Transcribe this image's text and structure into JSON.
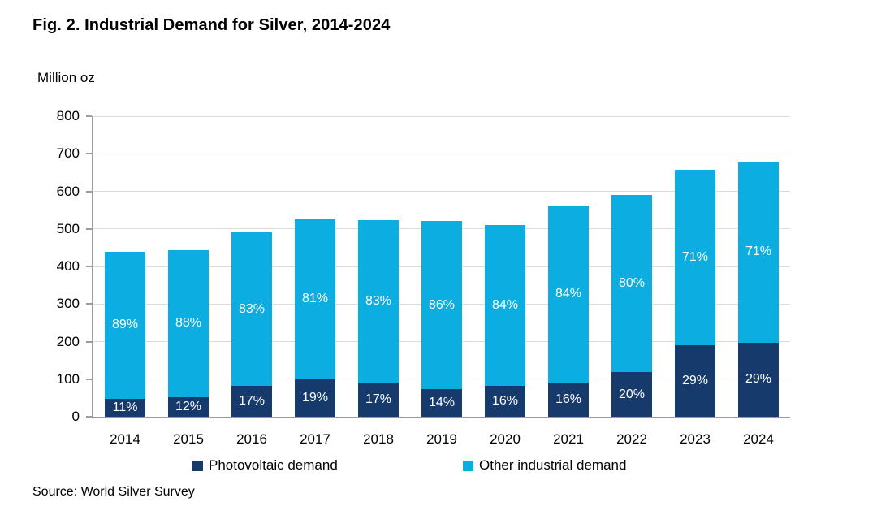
{
  "header": {
    "title": "Fig. 2. Industrial Demand for Silver, 2014-2024"
  },
  "source_note": "Source: World Silver Survey",
  "legend": {
    "position": "bottom",
    "items": [
      {
        "label": "Photovoltaic demand",
        "color": "#163a6b"
      },
      {
        "label": "Other industrial demand",
        "color": "#0caee2"
      }
    ]
  },
  "chart_data": {
    "type": "bar",
    "stacked": true,
    "title": "Fig. 2. Industrial Demand for Silver, 2014-2024",
    "xlabel": "",
    "ylabel": "Million oz",
    "ylim": [
      0,
      800
    ],
    "yticks": [
      0,
      100,
      200,
      300,
      400,
      500,
      600,
      700,
      800
    ],
    "grid": "horizontal",
    "legend_position": "bottom",
    "categories": [
      "2014",
      "2015",
      "2016",
      "2017",
      "2018",
      "2019",
      "2020",
      "2021",
      "2022",
      "2023",
      "2024"
    ],
    "totals": [
      440,
      443,
      490,
      526,
      523,
      521,
      511,
      562,
      590,
      657,
      679
    ],
    "series": [
      {
        "name": "Photovoltaic demand",
        "color": "#163a6b",
        "values": [
          48,
          53,
          83,
          100,
          89,
          73,
          82,
          90,
          118,
          191,
          197
        ],
        "labels": [
          "11%",
          "12%",
          "17%",
          "19%",
          "17%",
          "14%",
          "16%",
          "16%",
          "20%",
          "29%",
          "29%"
        ]
      },
      {
        "name": "Other industrial demand",
        "color": "#0caee2",
        "values": [
          392,
          390,
          407,
          426,
          434,
          448,
          429,
          472,
          472,
          466,
          482
        ],
        "labels": [
          "89%",
          "88%",
          "83%",
          "81%",
          "83%",
          "86%",
          "84%",
          "84%",
          "80%",
          "71%",
          "71%"
        ]
      }
    ]
  }
}
